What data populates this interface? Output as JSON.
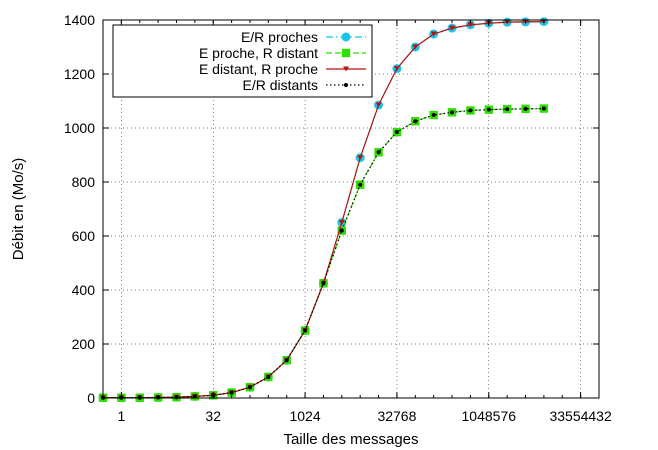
{
  "chart_data": {
    "type": "line",
    "title": "",
    "xlabel": "Taille des messages",
    "ylabel": "Débit en (Mo/s)",
    "x_scale": "log2",
    "xlim": [
      0.5,
      67108864
    ],
    "ylim": [
      0,
      1400
    ],
    "x_ticks": [
      1,
      32,
      1024,
      32768,
      1048576,
      33554432
    ],
    "x_tick_labels": [
      "1",
      "32",
      "1024",
      "32768",
      "1048576",
      "33554432"
    ],
    "y_ticks": [
      0,
      200,
      400,
      600,
      800,
      1000,
      1200,
      1400
    ],
    "y_tick_labels": [
      "0",
      "200",
      "400",
      "600",
      "800",
      "1000",
      "1200",
      "1400"
    ],
    "grid": true,
    "legend_position": "top-left",
    "x": [
      0.5,
      1,
      2,
      4,
      8,
      16,
      32,
      64,
      128,
      256,
      512,
      1024,
      2048,
      4096,
      8192,
      16384,
      32768,
      65536,
      131072,
      262144,
      524288,
      1048576,
      2097152,
      4194304,
      8388608
    ],
    "series": [
      {
        "name": "E/R proches",
        "color": "#19c5ea",
        "marker": "circle",
        "dash": "dash-dot",
        "values": [
          1,
          1,
          1,
          2,
          3,
          6,
          10,
          20,
          40,
          78,
          140,
          250,
          425,
          650,
          890,
          1085,
          1220,
          1300,
          1348,
          1370,
          1382,
          1388,
          1392,
          1393,
          1394
        ]
      },
      {
        "name": "E proche, R distant",
        "color": "#2ee000",
        "marker": "square",
        "dash": "dashed",
        "values": [
          1,
          1,
          1,
          2,
          3,
          6,
          10,
          20,
          40,
          78,
          140,
          250,
          425,
          620,
          790,
          910,
          985,
          1025,
          1048,
          1058,
          1065,
          1068,
          1070,
          1071,
          1072
        ]
      },
      {
        "name": "E distant, R proche",
        "color": "#b5130d",
        "marker": "triangle-down",
        "dash": "solid",
        "values": [
          1,
          1,
          1,
          2,
          3,
          6,
          10,
          20,
          40,
          78,
          140,
          250,
          425,
          650,
          890,
          1085,
          1220,
          1300,
          1348,
          1370,
          1382,
          1388,
          1392,
          1393,
          1394
        ]
      },
      {
        "name": "E/R distants",
        "color": "#000000",
        "marker": "dot",
        "dash": "dotted",
        "values": [
          1,
          1,
          1,
          2,
          3,
          6,
          10,
          20,
          40,
          78,
          140,
          250,
          425,
          620,
          790,
          910,
          985,
          1025,
          1048,
          1058,
          1065,
          1068,
          1070,
          1071,
          1072
        ]
      }
    ]
  }
}
